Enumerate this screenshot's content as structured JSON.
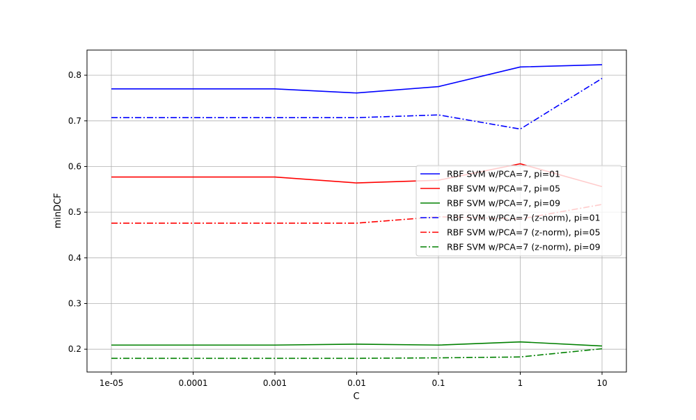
{
  "chart_data": {
    "type": "line",
    "categories": [
      "1e-05",
      "0.0001",
      "0.001",
      "0.01",
      "0.1",
      "1",
      "10"
    ],
    "xlabel": "C",
    "ylabel": "minDCF",
    "ylim": [
      0.15,
      0.855
    ],
    "yticks": [
      0.2,
      0.3,
      0.4,
      0.5,
      0.6,
      0.7,
      0.8
    ],
    "ytick_labels": [
      "0.2",
      "0.3",
      "0.4",
      "0.5",
      "0.6",
      "0.7",
      "0.8"
    ],
    "grid": true,
    "legend_position": "center-right",
    "series": [
      {
        "name": "RBF SVM w/PCA=7, pi=01",
        "color": "#0000ff",
        "dash": "solid",
        "values": [
          0.77,
          0.77,
          0.77,
          0.761,
          0.775,
          0.818,
          0.823
        ]
      },
      {
        "name": "RBF SVM w/PCA=7, pi=05",
        "color": "#ff0000",
        "dash": "solid",
        "values": [
          0.577,
          0.577,
          0.577,
          0.564,
          0.57,
          0.606,
          0.556
        ]
      },
      {
        "name": "RBF SVM w/PCA=7, pi=09",
        "color": "#008000",
        "dash": "solid",
        "values": [
          0.209,
          0.209,
          0.209,
          0.211,
          0.209,
          0.216,
          0.207
        ]
      },
      {
        "name": "RBF SVM w/PCA=7 (z-norm), pi=01",
        "color": "#0000ff",
        "dash": "dashdot",
        "values": [
          0.707,
          0.707,
          0.707,
          0.707,
          0.713,
          0.682,
          0.793
        ]
      },
      {
        "name": "RBF SVM w/PCA=7 (z-norm), pi=05",
        "color": "#ff0000",
        "dash": "dashdot",
        "values": [
          0.476,
          0.476,
          0.476,
          0.476,
          0.49,
          0.485,
          0.517
        ]
      },
      {
        "name": "RBF SVM w/PCA=7 (z-norm), pi=09",
        "color": "#008000",
        "dash": "dashdot",
        "values": [
          0.18,
          0.18,
          0.18,
          0.18,
          0.181,
          0.183,
          0.201
        ]
      }
    ]
  }
}
